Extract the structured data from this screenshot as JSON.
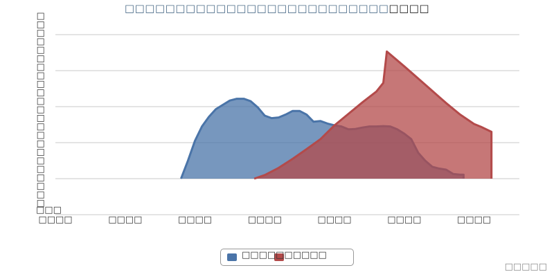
{
  "chart_data": {
    "type": "area",
    "title": "□□□□□□□□□□□□□□□□□□□□□□□□□□",
    "title_tail": "□□□□",
    "ylabel": "□□□□□□□□□□□□□□□□□□□□□□□",
    "y_unit": "□□□",
    "grid": true,
    "legend_position": "bottom-center",
    "xlim": [
      0,
      6.65
    ],
    "ylim": [
      -1,
      4
    ],
    "x_tick_labels": [
      "□□□□",
      "□□□□",
      "□□□□",
      "□□□□",
      "□□□□",
      "□□□□",
      "□□□□"
    ],
    "series": [
      {
        "color": "#4a74a8",
        "points": [
          [
            1.8,
            0
          ],
          [
            1.9,
            0.5
          ],
          [
            2.0,
            1.05
          ],
          [
            2.1,
            1.45
          ],
          [
            2.2,
            1.72
          ],
          [
            2.3,
            1.93
          ],
          [
            2.4,
            2.05
          ],
          [
            2.5,
            2.17
          ],
          [
            2.6,
            2.22
          ],
          [
            2.7,
            2.22
          ],
          [
            2.8,
            2.15
          ],
          [
            2.9,
            1.98
          ],
          [
            3.0,
            1.75
          ],
          [
            3.1,
            1.68
          ],
          [
            3.2,
            1.7
          ],
          [
            3.3,
            1.78
          ],
          [
            3.4,
            1.88
          ],
          [
            3.5,
            1.88
          ],
          [
            3.6,
            1.78
          ],
          [
            3.7,
            1.58
          ],
          [
            3.8,
            1.6
          ],
          [
            3.9,
            1.53
          ],
          [
            4.0,
            1.48
          ],
          [
            4.1,
            1.45
          ],
          [
            4.2,
            1.37
          ],
          [
            4.3,
            1.38
          ],
          [
            4.4,
            1.42
          ],
          [
            4.5,
            1.45
          ],
          [
            4.6,
            1.45
          ],
          [
            4.7,
            1.46
          ],
          [
            4.8,
            1.45
          ],
          [
            4.9,
            1.37
          ],
          [
            5.0,
            1.25
          ],
          [
            5.1,
            1.1
          ],
          [
            5.2,
            0.72
          ],
          [
            5.3,
            0.5
          ],
          [
            5.4,
            0.33
          ],
          [
            5.5,
            0.28
          ],
          [
            5.6,
            0.25
          ],
          [
            5.7,
            0.13
          ],
          [
            5.8,
            0.11
          ],
          [
            5.85,
            0.11
          ],
          [
            5.85,
            0
          ]
        ]
      },
      {
        "color": "#b34a4a",
        "points": [
          [
            2.85,
            0
          ],
          [
            3.0,
            0.1
          ],
          [
            3.2,
            0.3
          ],
          [
            3.4,
            0.55
          ],
          [
            3.6,
            0.82
          ],
          [
            3.8,
            1.1
          ],
          [
            4.0,
            1.48
          ],
          [
            4.2,
            1.8
          ],
          [
            4.4,
            2.12
          ],
          [
            4.6,
            2.42
          ],
          [
            4.7,
            2.66
          ],
          [
            4.75,
            3.53
          ],
          [
            5.0,
            3.12
          ],
          [
            5.2,
            2.78
          ],
          [
            5.4,
            2.44
          ],
          [
            5.6,
            2.1
          ],
          [
            5.8,
            1.78
          ],
          [
            6.0,
            1.52
          ],
          [
            6.1,
            1.44
          ],
          [
            6.25,
            1.3
          ],
          [
            6.25,
            0
          ]
        ]
      }
    ],
    "legend": [
      {
        "label": "□□□□□□□□□□",
        "color": "#4a74a8"
      },
      {
        "label": "",
        "color": "#b34a4a"
      }
    ]
  },
  "credit": "□□□□□"
}
